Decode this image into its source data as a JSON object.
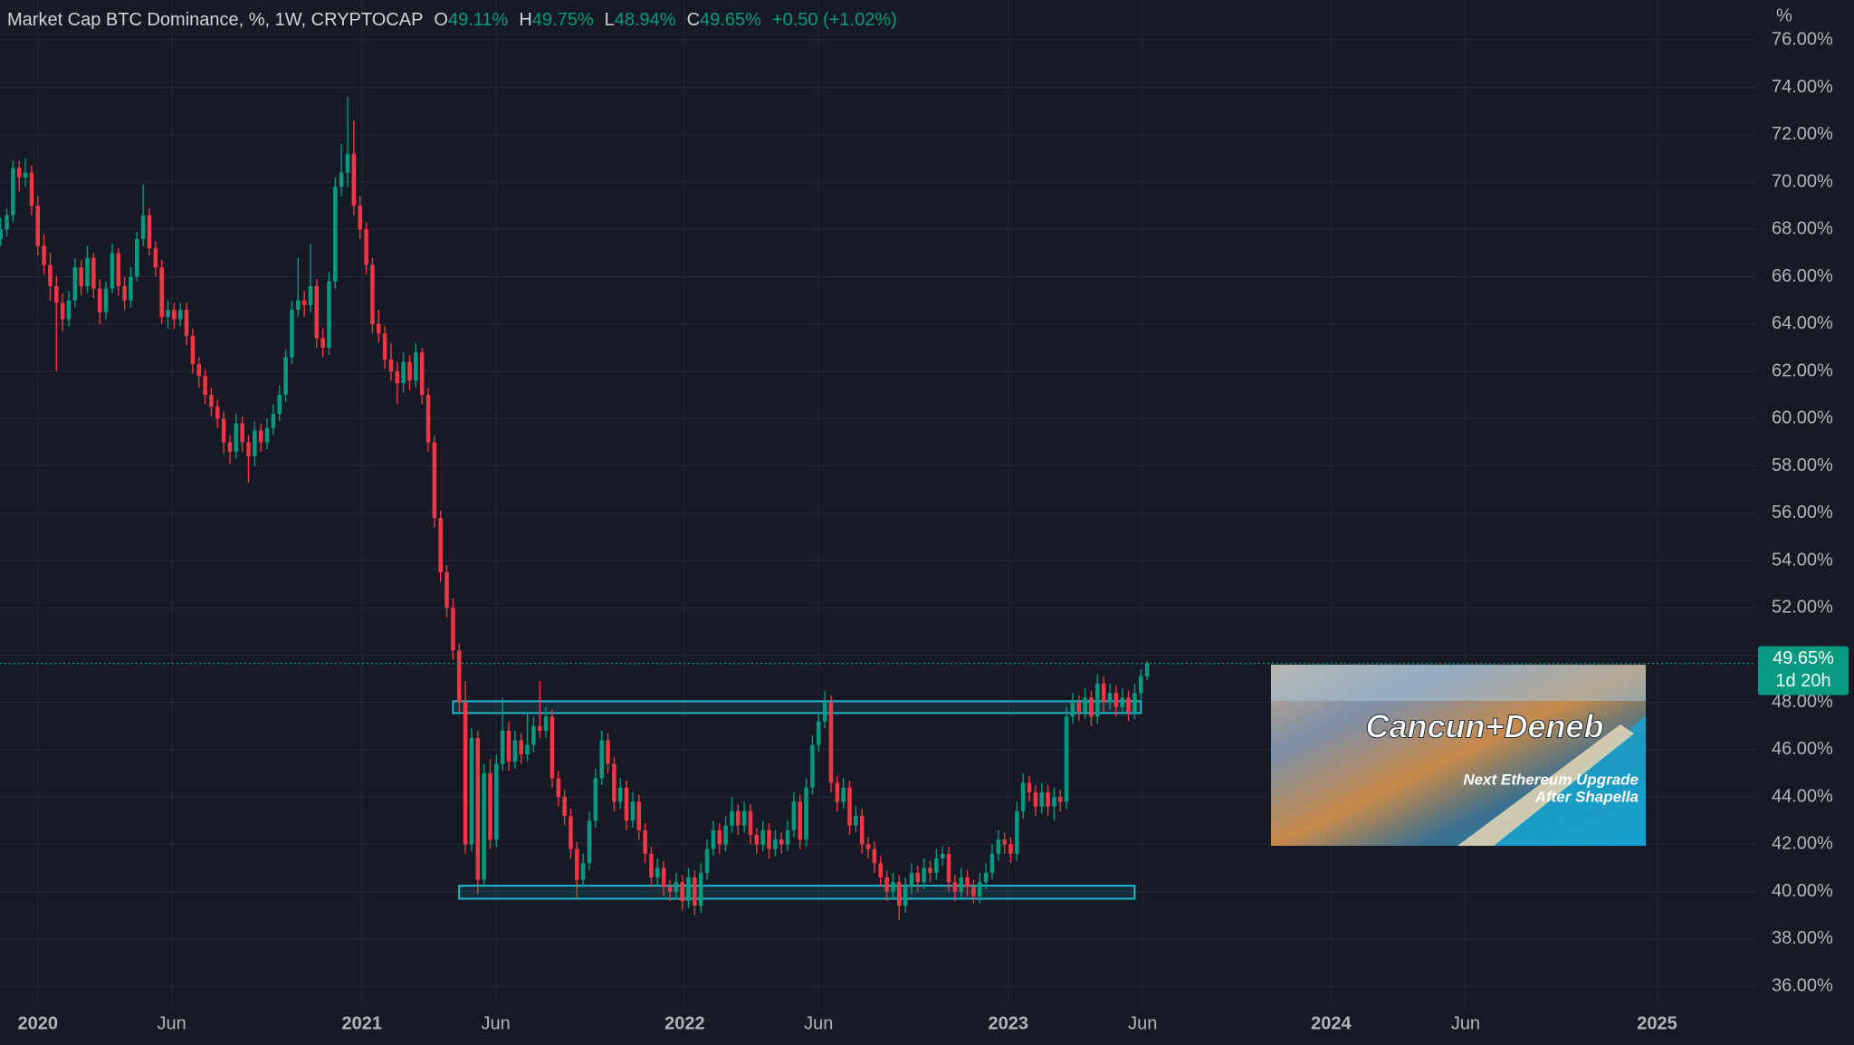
{
  "header": {
    "title": "Market Cap BTC Dominance, %, 1W, CRYPTOCAP",
    "open_label": "O",
    "open": "49.11%",
    "high_label": "H",
    "high": "49.75%",
    "low_label": "L",
    "low": "48.94%",
    "close_label": "C",
    "close": "49.65%",
    "change": "+0.50 (+1.02%)"
  },
  "price_label": {
    "value": "49.65%",
    "countdown": "1d 20h"
  },
  "annotation": {
    "title": "Cancun+Deneb",
    "line1": "Next Ethereum Upgrade",
    "line2": "After Shapella"
  },
  "chart_data": {
    "type": "candlestick",
    "unit_label": "%",
    "up_color": "#089981",
    "down_color": "#f23645",
    "grid": true,
    "xlim": [
      -0.1,
      283.3
    ],
    "ylim": [
      35.2,
      77.7
    ],
    "xticks": [
      {
        "value": 6,
        "label": "2020"
      },
      {
        "value": 27.6,
        "label": "Jun"
      },
      {
        "value": 58.3,
        "label": "2021"
      },
      {
        "value": 79.9,
        "label": "Jun"
      },
      {
        "value": 110.4,
        "label": "2022"
      },
      {
        "value": 132,
        "label": "Jun"
      },
      {
        "value": 162.6,
        "label": "2023"
      },
      {
        "value": 184.3,
        "label": "Jun"
      },
      {
        "value": 214.7,
        "label": "2024"
      },
      {
        "value": 236.4,
        "label": "Jun"
      },
      {
        "value": 267.3,
        "label": "2025"
      }
    ],
    "yticks": [
      {
        "value": 36,
        "label": "36.00%"
      },
      {
        "value": 38,
        "label": "38.00%"
      },
      {
        "value": 40,
        "label": "40.00%"
      },
      {
        "value": 42,
        "label": "42.00%"
      },
      {
        "value": 44,
        "label": "44.00%"
      },
      {
        "value": 46,
        "label": "46.00%"
      },
      {
        "value": 48,
        "label": "48.00%"
      },
      {
        "value": 50,
        "label": "50.00%"
      },
      {
        "value": 52,
        "label": "52.00%"
      },
      {
        "value": 54,
        "label": "54.00%"
      },
      {
        "value": 56,
        "label": "56.00%"
      },
      {
        "value": 58,
        "label": "58.00%"
      },
      {
        "value": 60,
        "label": "60.00%"
      },
      {
        "value": 62,
        "label": "62.00%"
      },
      {
        "value": 64,
        "label": "64.00%"
      },
      {
        "value": 66,
        "label": "66.00%"
      },
      {
        "value": 68,
        "label": "68.00%"
      },
      {
        "value": 70,
        "label": "70.00%"
      },
      {
        "value": 72,
        "label": "72.00%"
      },
      {
        "value": 74,
        "label": "74.00%"
      },
      {
        "value": 76,
        "label": "76.00%"
      }
    ],
    "zones": [
      {
        "x": [
          73,
          184
        ],
        "y": [
          47.55,
          48.05
        ],
        "color": "#22b8cf"
      },
      {
        "x": [
          74,
          183
        ],
        "y": [
          39.7,
          40.25
        ],
        "color": "#22b8cf"
      }
    ],
    "candles": [
      [
        67.6,
        68.5,
        67.3,
        68.0
      ],
      [
        68.0,
        68.9,
        67.7,
        68.6
      ],
      [
        68.6,
        70.9,
        68.3,
        70.6
      ],
      [
        70.6,
        70.9,
        69.6,
        70.2
      ],
      [
        70.2,
        71.0,
        69.8,
        70.4
      ],
      [
        70.4,
        70.7,
        68.6,
        69.0
      ],
      [
        69.0,
        69.4,
        66.9,
        67.3
      ],
      [
        67.3,
        67.8,
        66.1,
        66.5
      ],
      [
        66.5,
        67.0,
        65.0,
        65.6
      ],
      [
        65.6,
        66.0,
        62.0,
        64.9
      ],
      [
        64.9,
        65.3,
        63.7,
        64.2
      ],
      [
        64.2,
        65.4,
        63.9,
        65.0
      ],
      [
        65.0,
        66.8,
        64.7,
        66.4
      ],
      [
        66.4,
        66.7,
        65.2,
        65.6
      ],
      [
        65.6,
        67.3,
        65.3,
        66.8
      ],
      [
        66.8,
        67.0,
        65.1,
        65.5
      ],
      [
        65.5,
        65.9,
        64.0,
        64.5
      ],
      [
        64.5,
        65.8,
        64.2,
        65.5
      ],
      [
        65.5,
        67.4,
        65.3,
        67.0
      ],
      [
        67.0,
        67.2,
        65.2,
        65.6
      ],
      [
        65.6,
        66.0,
        64.6,
        65.0
      ],
      [
        65.0,
        66.4,
        64.7,
        66.0
      ],
      [
        66.0,
        67.9,
        65.8,
        67.6
      ],
      [
        67.6,
        69.9,
        67.3,
        68.6
      ],
      [
        68.6,
        68.9,
        66.9,
        67.2
      ],
      [
        67.2,
        67.5,
        66.0,
        66.4
      ],
      [
        66.4,
        66.7,
        64.0,
        64.3
      ],
      [
        64.3,
        65.0,
        63.8,
        64.6
      ],
      [
        64.6,
        64.9,
        63.8,
        64.2
      ],
      [
        64.2,
        64.9,
        63.9,
        64.6
      ],
      [
        64.6,
        64.9,
        63.1,
        63.5
      ],
      [
        63.5,
        63.8,
        61.9,
        62.3
      ],
      [
        62.3,
        62.6,
        61.3,
        61.8
      ],
      [
        61.8,
        62.1,
        60.6,
        61.0
      ],
      [
        61.0,
        61.3,
        60.1,
        60.5
      ],
      [
        60.5,
        60.8,
        59.6,
        60.0
      ],
      [
        60.0,
        60.3,
        58.5,
        59.0
      ],
      [
        59.0,
        59.3,
        58.1,
        58.6
      ],
      [
        58.6,
        60.2,
        58.3,
        59.8
      ],
      [
        59.8,
        60.1,
        58.6,
        59.0
      ],
      [
        59.0,
        59.3,
        57.3,
        58.4
      ],
      [
        58.4,
        59.9,
        58.0,
        59.5
      ],
      [
        59.5,
        59.8,
        58.6,
        59.0
      ],
      [
        59.0,
        60.0,
        58.7,
        59.6
      ],
      [
        59.6,
        60.6,
        59.3,
        60.2
      ],
      [
        60.2,
        61.4,
        59.9,
        61.0
      ],
      [
        61.0,
        62.9,
        60.7,
        62.6
      ],
      [
        62.6,
        65.0,
        62.3,
        64.6
      ],
      [
        64.6,
        66.8,
        64.3,
        65.0
      ],
      [
        65.0,
        65.4,
        64.3,
        64.8
      ],
      [
        64.8,
        67.4,
        64.5,
        65.6
      ],
      [
        65.6,
        65.9,
        63.0,
        63.4
      ],
      [
        63.4,
        63.8,
        62.6,
        63.0
      ],
      [
        63.0,
        66.2,
        62.7,
        65.8
      ],
      [
        65.8,
        70.2,
        65.5,
        69.8
      ],
      [
        69.8,
        71.6,
        69.4,
        70.4
      ],
      [
        70.4,
        73.6,
        69.8,
        71.2
      ],
      [
        71.2,
        72.6,
        68.6,
        69.0
      ],
      [
        69.0,
        69.4,
        67.6,
        68.0
      ],
      [
        68.0,
        68.3,
        66.1,
        66.5
      ],
      [
        66.5,
        66.8,
        63.6,
        64.0
      ],
      [
        64.0,
        64.6,
        63.2,
        63.6
      ],
      [
        63.6,
        63.9,
        62.1,
        62.5
      ],
      [
        62.5,
        63.2,
        61.6,
        62.0
      ],
      [
        62.0,
        62.4,
        60.6,
        61.5
      ],
      [
        61.5,
        62.8,
        61.1,
        62.4
      ],
      [
        62.4,
        62.7,
        61.2,
        61.6
      ],
      [
        61.6,
        63.2,
        61.3,
        62.8
      ],
      [
        62.8,
        63.0,
        60.6,
        61.0
      ],
      [
        61.0,
        61.3,
        58.6,
        59.0
      ],
      [
        59.0,
        59.3,
        55.4,
        55.8
      ],
      [
        55.8,
        56.1,
        53.1,
        53.5
      ],
      [
        53.5,
        53.8,
        51.6,
        52.0
      ],
      [
        52.0,
        52.4,
        49.8,
        50.2
      ],
      [
        50.2,
        50.5,
        47.6,
        48.0
      ],
      [
        48.0,
        48.9,
        41.6,
        42.0
      ],
      [
        42.0,
        46.9,
        41.7,
        46.5
      ],
      [
        46.5,
        46.8,
        39.9,
        40.5
      ],
      [
        40.5,
        45.4,
        40.2,
        45.0
      ],
      [
        45.0,
        45.6,
        41.8,
        42.2
      ],
      [
        42.2,
        45.8,
        41.9,
        45.4
      ],
      [
        45.4,
        48.2,
        45.1,
        46.8
      ],
      [
        46.8,
        47.2,
        45.1,
        45.5
      ],
      [
        45.5,
        46.8,
        45.2,
        46.4
      ],
      [
        46.4,
        46.7,
        45.4,
        45.8
      ],
      [
        45.8,
        47.6,
        45.5,
        46.2
      ],
      [
        46.2,
        47.4,
        45.9,
        47.0
      ],
      [
        47.0,
        48.9,
        46.5,
        46.8
      ],
      [
        46.8,
        47.8,
        46.5,
        47.4
      ],
      [
        47.4,
        47.7,
        44.4,
        44.8
      ],
      [
        44.8,
        45.1,
        43.6,
        44.0
      ],
      [
        44.0,
        44.3,
        42.8,
        43.2
      ],
      [
        43.2,
        43.5,
        41.4,
        41.8
      ],
      [
        41.8,
        42.1,
        39.7,
        40.5
      ],
      [
        40.5,
        41.6,
        40.2,
        41.2
      ],
      [
        41.2,
        43.4,
        40.9,
        43.0
      ],
      [
        43.0,
        45.2,
        42.7,
        44.8
      ],
      [
        44.8,
        46.8,
        44.5,
        46.4
      ],
      [
        46.4,
        46.7,
        45.0,
        45.4
      ],
      [
        45.4,
        45.7,
        43.4,
        43.8
      ],
      [
        43.8,
        44.8,
        43.5,
        44.4
      ],
      [
        44.4,
        44.7,
        42.6,
        43.0
      ],
      [
        43.0,
        44.2,
        42.7,
        43.8
      ],
      [
        43.8,
        44.1,
        42.2,
        42.6
      ],
      [
        42.6,
        42.9,
        41.2,
        41.6
      ],
      [
        41.6,
        41.9,
        40.2,
        40.6
      ],
      [
        40.6,
        41.4,
        40.3,
        41.0
      ],
      [
        41.0,
        41.3,
        39.8,
        40.2
      ],
      [
        40.2,
        40.5,
        39.6,
        40.0
      ],
      [
        40.0,
        40.8,
        39.7,
        40.4
      ],
      [
        40.4,
        40.7,
        39.2,
        39.6
      ],
      [
        39.6,
        41.0,
        39.3,
        40.6
      ],
      [
        40.6,
        40.9,
        39.0,
        39.4
      ],
      [
        39.4,
        41.2,
        39.1,
        40.8
      ],
      [
        40.8,
        42.2,
        40.5,
        41.8
      ],
      [
        41.8,
        43.0,
        41.5,
        42.6
      ],
      [
        42.6,
        42.9,
        41.6,
        42.0
      ],
      [
        42.0,
        43.2,
        41.7,
        42.8
      ],
      [
        42.8,
        44.0,
        42.5,
        43.4
      ],
      [
        43.4,
        43.7,
        42.4,
        42.8
      ],
      [
        42.8,
        43.8,
        42.5,
        43.4
      ],
      [
        43.4,
        43.7,
        42.0,
        42.4
      ],
      [
        42.4,
        42.7,
        41.6,
        42.0
      ],
      [
        42.0,
        43.0,
        41.7,
        42.6
      ],
      [
        42.6,
        42.9,
        41.4,
        41.8
      ],
      [
        41.8,
        42.6,
        41.5,
        42.2
      ],
      [
        42.2,
        42.5,
        41.6,
        42.0
      ],
      [
        42.0,
        43.0,
        41.7,
        42.6
      ],
      [
        42.6,
        44.2,
        42.3,
        43.8
      ],
      [
        43.8,
        44.1,
        41.8,
        42.2
      ],
      [
        42.2,
        44.8,
        41.9,
        44.4
      ],
      [
        44.4,
        46.6,
        44.1,
        46.2
      ],
      [
        46.2,
        47.6,
        45.9,
        47.2
      ],
      [
        47.2,
        48.5,
        46.9,
        48.0
      ],
      [
        48.0,
        48.3,
        44.2,
        44.6
      ],
      [
        44.6,
        44.9,
        43.4,
        43.8
      ],
      [
        43.8,
        44.8,
        43.5,
        44.4
      ],
      [
        44.4,
        44.7,
        42.4,
        42.8
      ],
      [
        42.8,
        43.6,
        42.5,
        43.2
      ],
      [
        43.2,
        43.5,
        41.6,
        42.0
      ],
      [
        42.0,
        42.3,
        41.4,
        41.8
      ],
      [
        41.8,
        42.1,
        40.8,
        41.2
      ],
      [
        41.2,
        41.5,
        40.2,
        40.6
      ],
      [
        40.6,
        40.9,
        39.6,
        40.0
      ],
      [
        40.0,
        40.8,
        39.7,
        40.4
      ],
      [
        40.4,
        40.7,
        38.8,
        39.4
      ],
      [
        39.4,
        40.6,
        39.1,
        40.2
      ],
      [
        40.2,
        41.2,
        39.9,
        40.8
      ],
      [
        40.8,
        41.1,
        40.0,
        40.4
      ],
      [
        40.4,
        41.4,
        40.1,
        41.0
      ],
      [
        41.0,
        41.3,
        40.4,
        40.8
      ],
      [
        40.8,
        41.8,
        40.5,
        41.4
      ],
      [
        41.4,
        41.9,
        41.1,
        41.6
      ],
      [
        41.6,
        41.9,
        40.0,
        40.4
      ],
      [
        40.4,
        40.7,
        39.6,
        40.0
      ],
      [
        40.0,
        41.0,
        39.7,
        40.6
      ],
      [
        40.6,
        40.9,
        39.8,
        40.2
      ],
      [
        40.2,
        40.5,
        39.5,
        39.8
      ],
      [
        39.8,
        40.8,
        39.5,
        40.4
      ],
      [
        40.4,
        41.2,
        40.1,
        40.8
      ],
      [
        40.8,
        42.0,
        40.5,
        41.6
      ],
      [
        41.6,
        42.6,
        41.3,
        42.2
      ],
      [
        42.2,
        42.5,
        41.6,
        42.0
      ],
      [
        42.0,
        42.3,
        41.2,
        41.6
      ],
      [
        41.6,
        43.8,
        41.3,
        43.4
      ],
      [
        43.4,
        45.0,
        43.1,
        44.6
      ],
      [
        44.6,
        44.9,
        43.8,
        44.2
      ],
      [
        44.2,
        44.5,
        43.2,
        43.6
      ],
      [
        43.6,
        44.6,
        43.3,
        44.2
      ],
      [
        44.2,
        44.5,
        43.2,
        43.6
      ],
      [
        43.6,
        44.4,
        43.0,
        44.0
      ],
      [
        44.0,
        44.3,
        43.4,
        43.8
      ],
      [
        43.8,
        47.8,
        43.5,
        47.4
      ],
      [
        47.4,
        48.4,
        47.1,
        48.0
      ],
      [
        48.0,
        48.3,
        47.2,
        47.6
      ],
      [
        47.6,
        48.6,
        47.3,
        48.2
      ],
      [
        48.2,
        48.5,
        47.0,
        47.4
      ],
      [
        47.4,
        49.2,
        47.1,
        48.8
      ],
      [
        48.8,
        49.1,
        47.6,
        48.0
      ],
      [
        48.0,
        48.8,
        47.7,
        48.4
      ],
      [
        48.4,
        48.7,
        47.4,
        47.8
      ],
      [
        47.8,
        48.6,
        47.5,
        48.2
      ],
      [
        48.2,
        48.5,
        47.2,
        47.6
      ],
      [
        47.6,
        48.8,
        47.3,
        48.4
      ],
      [
        48.4,
        49.4,
        48.1,
        49.11
      ],
      [
        49.11,
        49.75,
        48.94,
        49.65
      ]
    ]
  }
}
